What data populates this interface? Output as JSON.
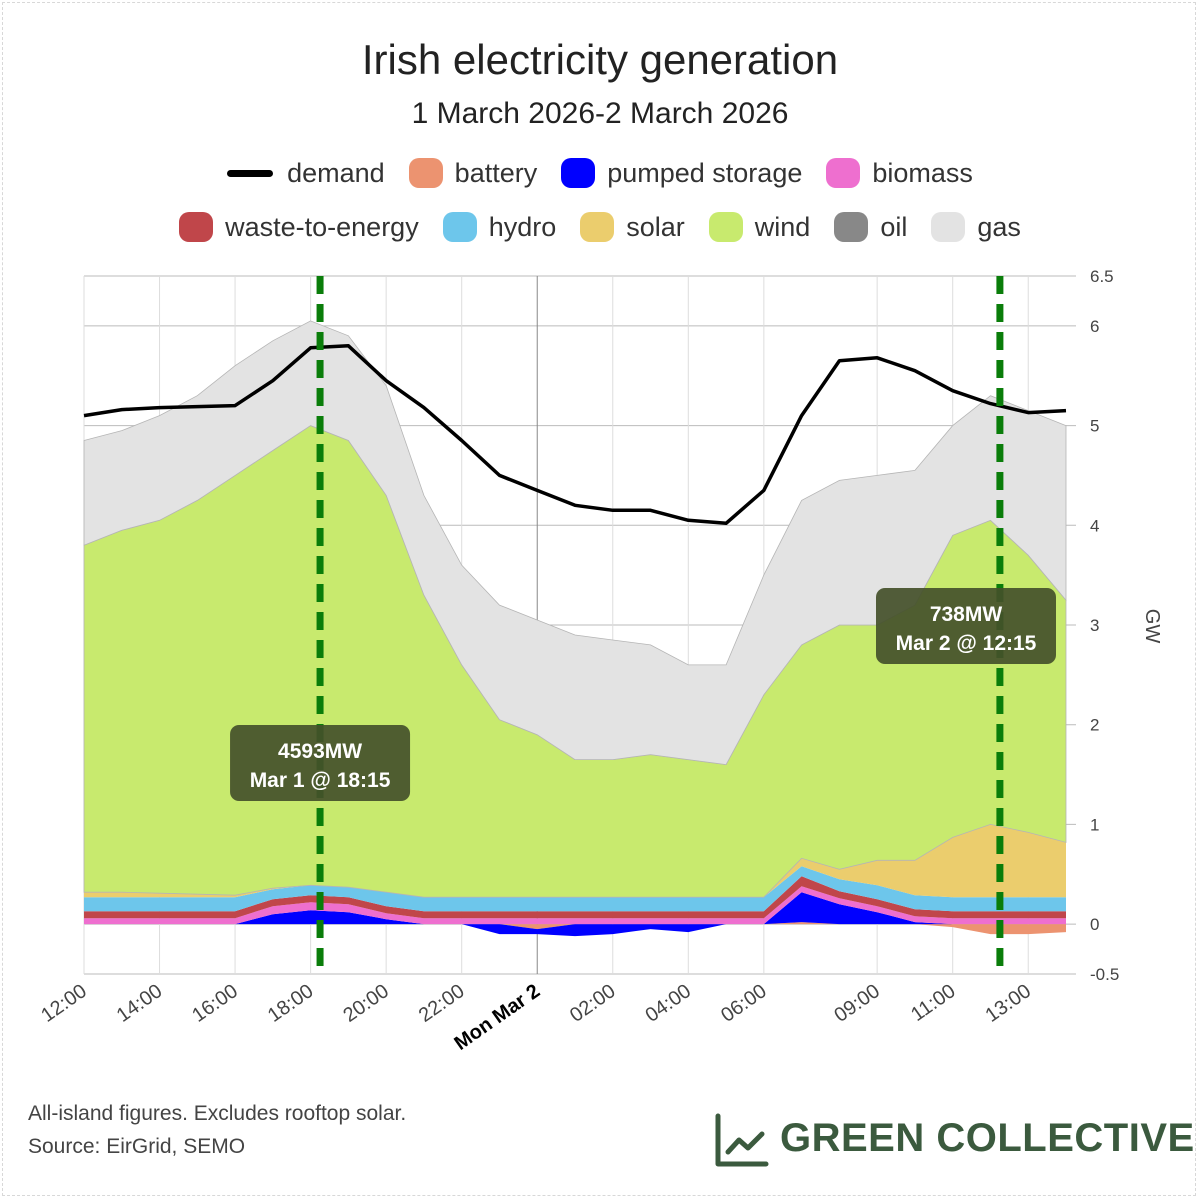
{
  "chart_data": {
    "type": "stacked-area",
    "title": "Irish electricity generation",
    "subtitle": "1 March 2026-2 March 2026",
    "y_label": "GW",
    "x": [
      "2026-03-01T12:00",
      "2026-03-01T13:00",
      "2026-03-01T14:00",
      "2026-03-01T15:00",
      "2026-03-01T16:00",
      "2026-03-01T17:00",
      "2026-03-01T18:00",
      "2026-03-01T19:00",
      "2026-03-01T20:00",
      "2026-03-01T21:00",
      "2026-03-01T22:00",
      "2026-03-01T23:00",
      "2026-03-02T00:00",
      "2026-03-02T01:00",
      "2026-03-02T02:00",
      "2026-03-02T03:00",
      "2026-03-02T04:00",
      "2026-03-02T05:00",
      "2026-03-02T06:00",
      "2026-03-02T07:00",
      "2026-03-02T08:00",
      "2026-03-02T09:00",
      "2026-03-02T10:00",
      "2026-03-02T11:00",
      "2026-03-02T12:00",
      "2026-03-02T13:00",
      "2026-03-02T14:00"
    ],
    "xlim": [
      "2026-03-01T12:00",
      "2026-03-02T14:00"
    ],
    "xticks": [
      {
        "value": "2026-03-01T12:00",
        "label": "12:00"
      },
      {
        "value": "2026-03-01T14:00",
        "label": "14:00"
      },
      {
        "value": "2026-03-01T16:00",
        "label": "16:00"
      },
      {
        "value": "2026-03-01T18:00",
        "label": "18:00"
      },
      {
        "value": "2026-03-01T20:00",
        "label": "20:00"
      },
      {
        "value": "2026-03-01T22:00",
        "label": "22:00"
      },
      {
        "value": "2026-03-02T00:00",
        "label": "Mon Mar 2",
        "major": true
      },
      {
        "value": "2026-03-02T02:00",
        "label": "02:00"
      },
      {
        "value": "2026-03-02T04:00",
        "label": "04:00"
      },
      {
        "value": "2026-03-02T06:00",
        "label": "06:00"
      },
      {
        "value": "2026-03-02T09:00",
        "label": "09:00"
      },
      {
        "value": "2026-03-02T11:00",
        "label": "11:00"
      },
      {
        "value": "2026-03-02T13:00",
        "label": "13:00"
      }
    ],
    "ylim": [
      -0.5,
      6.5
    ],
    "yticks": [
      -0.5,
      0,
      1,
      2,
      3,
      4,
      5,
      6,
      6.5
    ],
    "grid": true,
    "series": [
      {
        "name": "demand",
        "kind": "line",
        "color": "#000000",
        "values": [
          5.1,
          5.16,
          5.18,
          5.19,
          5.2,
          5.45,
          5.78,
          5.8,
          5.45,
          5.18,
          4.85,
          4.5,
          4.35,
          4.2,
          4.15,
          4.15,
          4.05,
          4.02,
          4.35,
          5.1,
          5.65,
          5.68,
          5.55,
          5.35,
          5.22,
          5.13,
          5.15
        ]
      },
      {
        "name": "battery",
        "color": "#ec9370",
        "values": [
          0,
          0,
          0,
          0,
          0,
          0,
          0,
          0,
          0,
          0,
          0,
          0,
          -0.05,
          0,
          0,
          0,
          0,
          0,
          0,
          0.02,
          0,
          0,
          0,
          -0.03,
          -0.1,
          -0.1,
          -0.08
        ]
      },
      {
        "name": "pumped storage",
        "color": "#0000ff",
        "values": [
          0,
          0,
          0,
          0,
          0,
          0.1,
          0.14,
          0.12,
          0.05,
          0,
          0,
          -0.1,
          -0.05,
          -0.12,
          -0.1,
          -0.05,
          -0.08,
          0,
          0,
          0.3,
          0.2,
          0.12,
          0.02,
          0,
          0,
          0,
          0
        ]
      },
      {
        "name": "biomass",
        "color": "#ee6fcf",
        "values": [
          0.06,
          0.06,
          0.06,
          0.06,
          0.06,
          0.08,
          0.08,
          0.08,
          0.06,
          0.06,
          0.06,
          0.06,
          0.06,
          0.06,
          0.06,
          0.06,
          0.06,
          0.06,
          0.06,
          0.06,
          0.06,
          0.06,
          0.06,
          0.06,
          0.06,
          0.06,
          0.06
        ]
      },
      {
        "name": "waste-to-energy",
        "color": "#c0464a",
        "values": [
          0.07,
          0.07,
          0.07,
          0.07,
          0.07,
          0.07,
          0.07,
          0.07,
          0.07,
          0.07,
          0.07,
          0.07,
          0.07,
          0.07,
          0.07,
          0.07,
          0.07,
          0.07,
          0.07,
          0.1,
          0.07,
          0.07,
          0.07,
          0.07,
          0.07,
          0.07,
          0.07
        ]
      },
      {
        "name": "hydro",
        "color": "#6dc6eb",
        "values": [
          0.14,
          0.14,
          0.14,
          0.14,
          0.14,
          0.1,
          0.1,
          0.1,
          0.14,
          0.14,
          0.14,
          0.14,
          0.14,
          0.14,
          0.14,
          0.14,
          0.14,
          0.14,
          0.14,
          0.1,
          0.12,
          0.14,
          0.14,
          0.14,
          0.14,
          0.14,
          0.14
        ]
      },
      {
        "name": "solar",
        "color": "#ebcd6d",
        "values": [
          0.05,
          0.05,
          0.04,
          0.03,
          0.02,
          0.01,
          0,
          0,
          0,
          0,
          0,
          0,
          0,
          0,
          0,
          0,
          0,
          0,
          0,
          0.08,
          0.1,
          0.25,
          0.35,
          0.6,
          0.73,
          0.65,
          0.55
        ]
      },
      {
        "name": "wind",
        "color": "#c8ea6e",
        "values": [
          3.48,
          3.63,
          3.74,
          3.95,
          4.21,
          4.39,
          4.61,
          4.48,
          3.98,
          3.03,
          2.33,
          1.78,
          1.63,
          1.38,
          1.38,
          1.43,
          1.38,
          1.33,
          2.03,
          2.14,
          2.45,
          2.36,
          2.56,
          3.03,
          3.05,
          2.78,
          2.43
        ]
      },
      {
        "name": "oil",
        "color": "#888888",
        "values": [
          0,
          0,
          0,
          0,
          0,
          0,
          0,
          0,
          0,
          0,
          0,
          0,
          0,
          0,
          0,
          0,
          0,
          0,
          0,
          0,
          0,
          0,
          0,
          0,
          0,
          0,
          0
        ]
      },
      {
        "name": "gas",
        "color": "#e3e3e3",
        "values": [
          1.05,
          1.0,
          1.05,
          1.05,
          1.1,
          1.1,
          1.05,
          1.05,
          1.1,
          1.0,
          1.0,
          1.15,
          1.15,
          1.25,
          1.2,
          1.1,
          0.95,
          1.0,
          1.2,
          1.45,
          1.45,
          1.5,
          1.35,
          1.1,
          1.25,
          1.45,
          1.75
        ]
      }
    ],
    "annotations": [
      {
        "x": "2026-03-01T18:15",
        "label": "4593MW",
        "sublabel": "Mar 1 @ 18:15",
        "color": "#0a7d0a"
      },
      {
        "x": "2026-03-02T12:15",
        "label": "738MW",
        "sublabel": "Mar 2 @ 12:15",
        "color": "#0a7d0a"
      }
    ]
  },
  "footer": {
    "note": "All-island figures. Excludes rooftop solar.",
    "source": "Source: EirGrid, SEMO",
    "brand": "GREEN COLLECTIVE"
  }
}
